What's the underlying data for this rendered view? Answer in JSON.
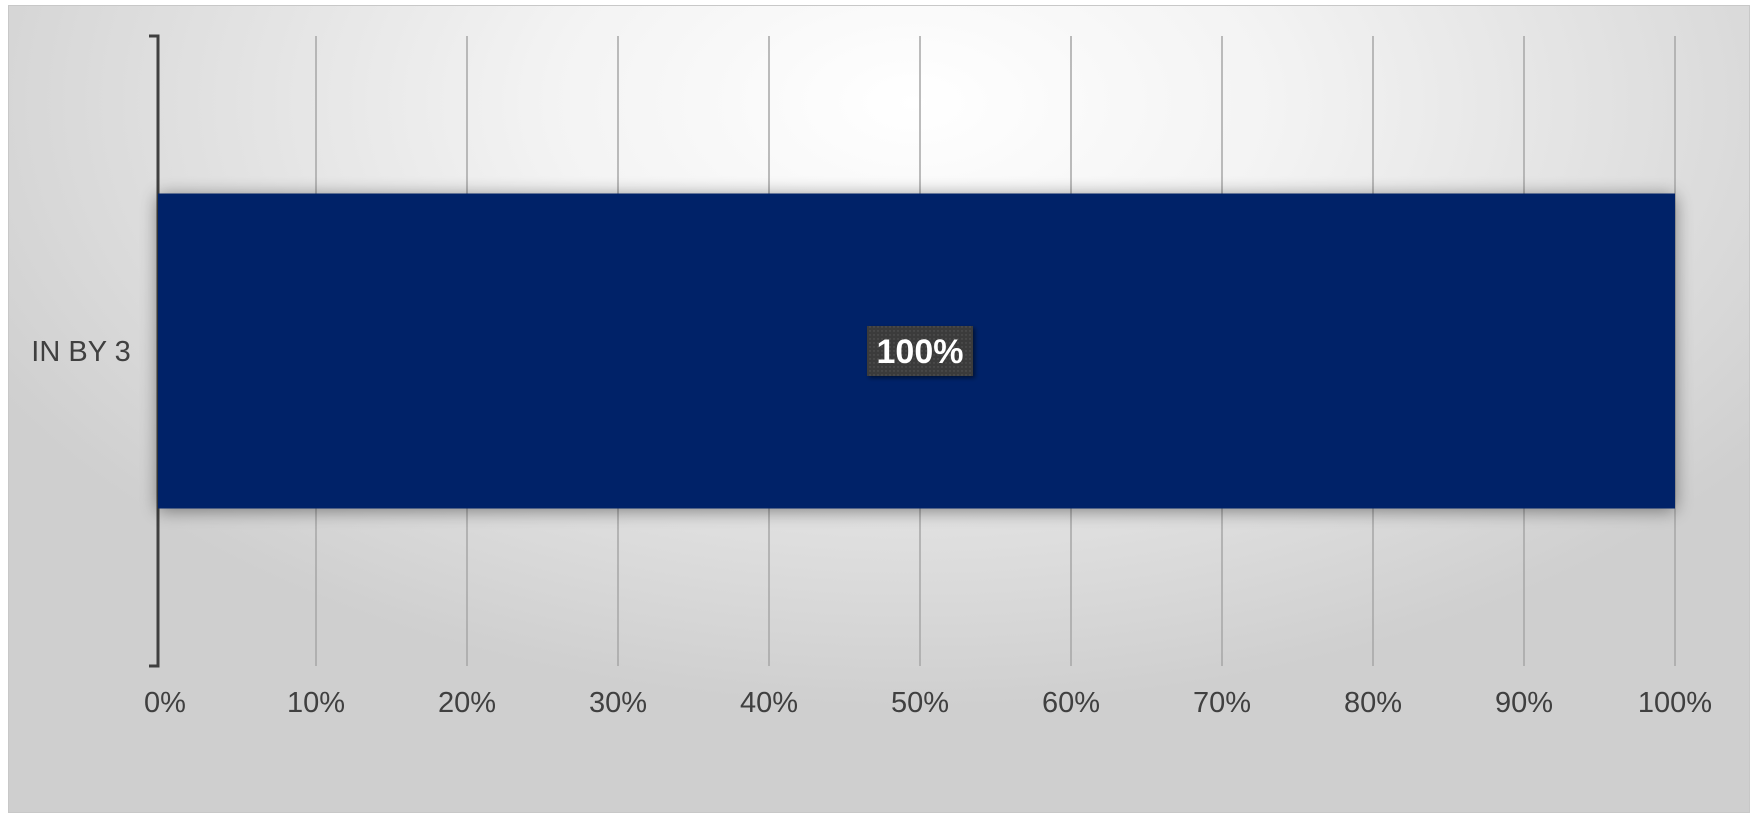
{
  "chart_data": {
    "type": "bar",
    "orientation": "horizontal",
    "categories": [
      "IN BY 3"
    ],
    "series": [
      {
        "values": [
          100
        ]
      }
    ],
    "data_labels": [
      "100%"
    ],
    "xlim": [
      0,
      100
    ],
    "x_ticks": [
      0,
      10,
      20,
      30,
      40,
      50,
      60,
      70,
      80,
      90,
      100
    ],
    "x_tick_labels": [
      "0%",
      "10%",
      "20%",
      "30%",
      "40%",
      "50%",
      "60%",
      "70%",
      "80%",
      "90%",
      "100%"
    ],
    "grid": true,
    "legend": "none",
    "colors": {
      "bar": "#002068",
      "gridline": "#a6a6a6",
      "axis": "#404040",
      "label_box": "#3c3c3c",
      "label_text": "#ffffff"
    }
  }
}
